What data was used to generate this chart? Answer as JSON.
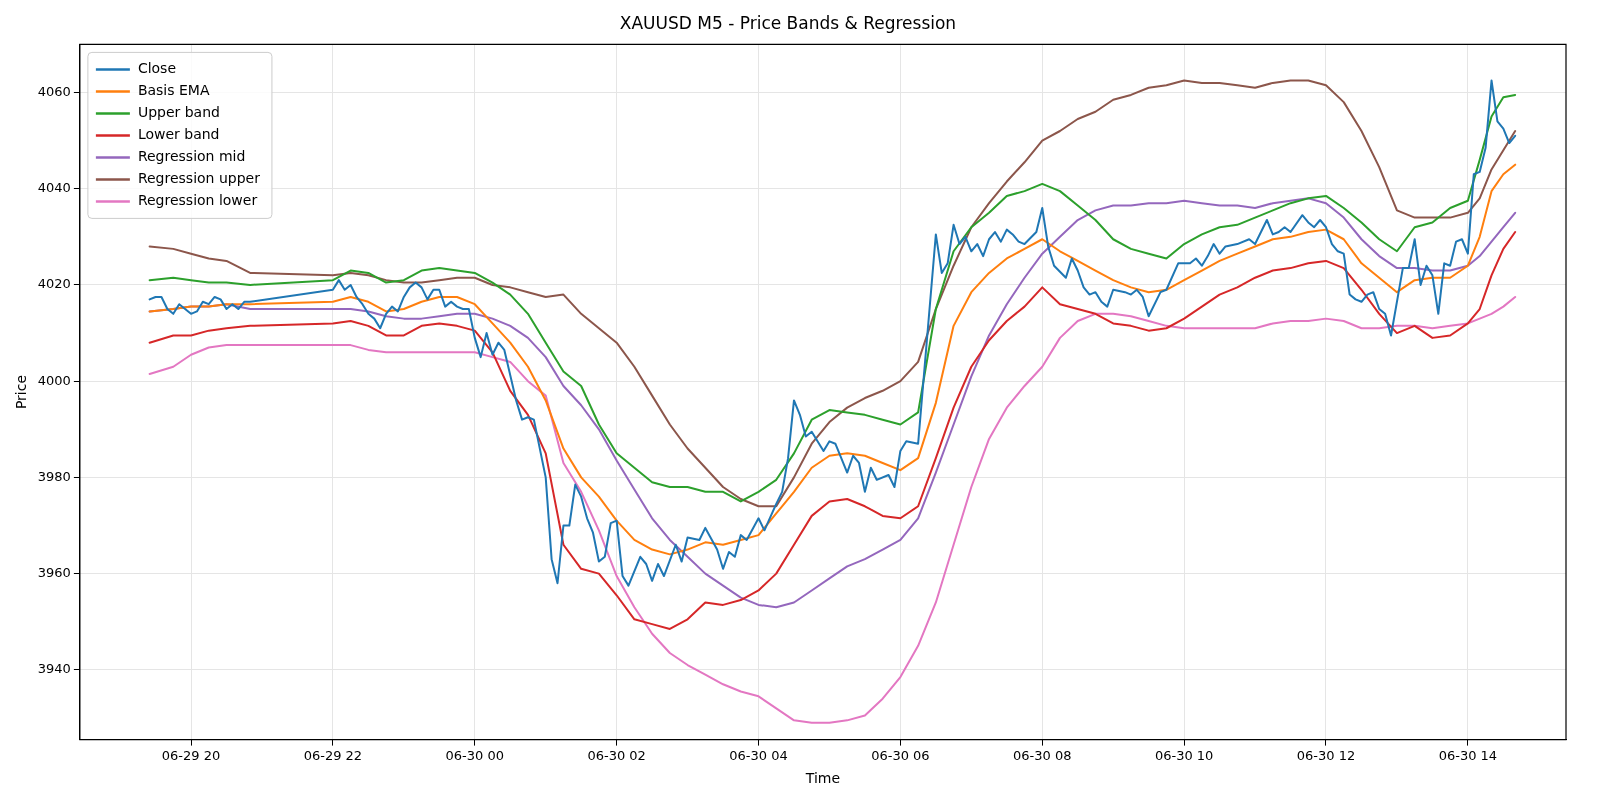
{
  "chart_data": {
    "type": "line",
    "title": "XAUUSD M5 - Price Bands & Regression",
    "xlabel": "Time",
    "ylabel": "Price",
    "x": [
      "--06-29T19:25",
      "--06-29T19:45",
      "--06-29T20:00",
      "--06-29T20:15",
      "--06-29T20:30",
      "--06-29T20:50",
      "--06-29T22:00",
      "--06-29T22:15",
      "--06-29T22:30",
      "--06-29T22:45",
      "--06-29T23:00",
      "--06-29T23:15",
      "--06-29T23:30",
      "--06-29T23:45",
      "--06-30T00:00",
      "--06-30T00:15",
      "--06-30T00:30",
      "--06-30T00:45",
      "--06-30T01:00",
      "--06-30T01:15",
      "--06-30T01:30",
      "--06-30T01:45",
      "--06-30T02:00",
      "--06-30T02:15",
      "--06-30T02:30",
      "--06-30T02:45",
      "--06-30T03:00",
      "--06-30T03:15",
      "--06-30T03:30",
      "--06-30T03:45",
      "--06-30T04:00",
      "--06-30T04:15",
      "--06-30T04:30",
      "--06-30T04:45",
      "--06-30T05:00",
      "--06-30T05:15",
      "--06-30T05:30",
      "--06-30T05:45",
      "--06-30T06:00",
      "--06-30T06:15",
      "--06-30T06:30",
      "--06-30T06:45",
      "--06-30T07:00",
      "--06-30T07:15",
      "--06-30T07:30",
      "--06-30T07:45",
      "--06-30T08:00",
      "--06-30T08:15",
      "--06-30T08:30",
      "--06-30T08:45",
      "--06-30T09:00",
      "--06-30T09:15",
      "--06-30T09:30",
      "--06-30T09:45",
      "--06-30T10:00",
      "--06-30T10:15",
      "--06-30T10:30",
      "--06-30T10:45",
      "--06-30T11:00",
      "--06-30T11:15",
      "--06-30T11:30",
      "--06-30T11:45",
      "--06-30T12:00",
      "--06-30T12:15",
      "--06-30T12:30",
      "--06-30T12:45",
      "--06-30T13:00",
      "--06-30T13:15",
      "--06-30T13:30",
      "--06-30T13:45",
      "--06-30T14:00",
      "--06-30T14:10",
      "--06-30T14:20",
      "--06-30T14:30",
      "--06-30T14:40"
    ],
    "series": [
      {
        "name": "Close",
        "color": "#1f77b4",
        "x": [
          "--06-29T19:25",
          "--06-29T19:30",
          "--06-29T19:35",
          "--06-29T19:40",
          "--06-29T19:45",
          "--06-29T19:50",
          "--06-29T19:55",
          "--06-29T20:00",
          "--06-29T20:05",
          "--06-29T20:10",
          "--06-29T20:15",
          "--06-29T20:20",
          "--06-29T20:25",
          "--06-29T20:30",
          "--06-29T20:35",
          "--06-29T20:40",
          "--06-29T20:45",
          "--06-29T20:50",
          "--06-29T22:00",
          "--06-29T22:05",
          "--06-29T22:10",
          "--06-29T22:15",
          "--06-29T22:20",
          "--06-29T22:25",
          "--06-29T22:30",
          "--06-29T22:35",
          "--06-29T22:40",
          "--06-29T22:45",
          "--06-29T22:50",
          "--06-29T22:55",
          "--06-29T23:00",
          "--06-29T23:05",
          "--06-29T23:10",
          "--06-29T23:15",
          "--06-29T23:20",
          "--06-29T23:25",
          "--06-29T23:30",
          "--06-29T23:35",
          "--06-29T23:40",
          "--06-29T23:45",
          "--06-29T23:50",
          "--06-29T23:55",
          "--06-30T00:00",
          "--06-30T00:05",
          "--06-30T00:10",
          "--06-30T00:15",
          "--06-30T00:20",
          "--06-30T00:25",
          "--06-30T00:35",
          "--06-30T00:40",
          "--06-30T00:45",
          "--06-30T00:50",
          "--06-30T01:00",
          "--06-30T01:05",
          "--06-30T01:10",
          "--06-30T01:15",
          "--06-30T01:20",
          "--06-30T01:25",
          "--06-30T01:30",
          "--06-30T01:35",
          "--06-30T01:40",
          "--06-30T01:45",
          "--06-30T01:50",
          "--06-30T01:55",
          "--06-30T02:00",
          "--06-30T02:05",
          "--06-30T02:10",
          "--06-30T02:20",
          "--06-30T02:25",
          "--06-30T02:30",
          "--06-30T02:35",
          "--06-30T02:40",
          "--06-30T02:50",
          "--06-30T02:55",
          "--06-30T03:00",
          "--06-30T03:10",
          "--06-30T03:15",
          "--06-30T03:25",
          "--06-30T03:30",
          "--06-30T03:35",
          "--06-30T03:40",
          "--06-30T03:45",
          "--06-30T03:50",
          "--06-30T04:00",
          "--06-30T04:05",
          "--06-30T04:15",
          "--06-30T04:20",
          "--06-30T04:25",
          "--06-30T04:30",
          "--06-30T04:35",
          "--06-30T04:40",
          "--06-30T04:45",
          "--06-30T04:55",
          "--06-30T05:00",
          "--06-30T05:05",
          "--06-30T05:15",
          "--06-30T05:20",
          "--06-30T05:25",
          "--06-30T05:30",
          "--06-30T05:35",
          "--06-30T05:40",
          "--06-30T05:50",
          "--06-30T05:55",
          "--06-30T06:00",
          "--06-30T06:05",
          "--06-30T06:15",
          "--06-30T06:30",
          "--06-30T06:35",
          "--06-30T06:40",
          "--06-30T06:45",
          "--06-30T06:50",
          "--06-30T06:55",
          "--06-30T07:00",
          "--06-30T07:05",
          "--06-30T07:10",
          "--06-30T07:15",
          "--06-30T07:20",
          "--06-30T07:25",
          "--06-30T07:30",
          "--06-30T07:35",
          "--06-30T07:40",
          "--06-30T07:45",
          "--06-30T07:55",
          "--06-30T08:00",
          "--06-30T08:05",
          "--06-30T08:10",
          "--06-30T08:20",
          "--06-30T08:25",
          "--06-30T08:30",
          "--06-30T08:35",
          "--06-30T08:40",
          "--06-30T08:45",
          "--06-30T08:50",
          "--06-30T08:55",
          "--06-30T09:00",
          "--06-30T09:10",
          "--06-30T09:15",
          "--06-30T09:20",
          "--06-30T09:25",
          "--06-30T09:30",
          "--06-30T09:40",
          "--06-30T09:45",
          "--06-30T09:55",
          "--06-30T10:00",
          "--06-30T10:05",
          "--06-30T10:10",
          "--06-30T10:15",
          "--06-30T10:20",
          "--06-30T10:25",
          "--06-30T10:30",
          "--06-30T10:35",
          "--06-30T10:45",
          "--06-30T10:55",
          "--06-30T11:00",
          "--06-30T11:10",
          "--06-30T11:15",
          "--06-30T11:20",
          "--06-30T11:25",
          "--06-30T11:30",
          "--06-30T11:40",
          "--06-30T11:45",
          "--06-30T11:50",
          "--06-30T11:55",
          "--06-30T12:00",
          "--06-30T12:05",
          "--06-30T12:10",
          "--06-30T12:15",
          "--06-30T12:20",
          "--06-30T12:25",
          "--06-30T12:30",
          "--06-30T12:35",
          "--06-30T12:40",
          "--06-30T12:45",
          "--06-30T12:50",
          "--06-30T12:55",
          "--06-30T13:05",
          "--06-30T13:10",
          "--06-30T13:15",
          "--06-30T13:20",
          "--06-30T13:25",
          "--06-30T13:30",
          "--06-30T13:35",
          "--06-30T13:40",
          "--06-30T13:45",
          "--06-30T13:50",
          "--06-30T13:55",
          "--06-30T14:00",
          "--06-30T14:05",
          "--06-30T14:10",
          "--06-30T14:15",
          "--06-30T14:20",
          "--06-30T14:25",
          "--06-30T14:30",
          "--06-30T14:35",
          "--06-30T14:40"
        ],
        "values": [
          4017,
          4017.5,
          4017.5,
          4015,
          4014,
          4016,
          4015,
          4014,
          4014.5,
          4016.5,
          4016,
          4017.5,
          4017,
          4015,
          4016,
          4015,
          4016.5,
          4016.5,
          4019,
          4021,
          4019,
          4020,
          4017.5,
          4016,
          4014,
          4013,
          4011,
          4014,
          4015.5,
          4014.5,
          4017.5,
          4019.5,
          4020.5,
          4019.5,
          4017,
          4019,
          4019,
          4015.5,
          4016.5,
          4015.5,
          4015,
          4015,
          4009,
          4005,
          4010,
          4005.5,
          4008,
          4006.5,
          3996,
          3992,
          3992.5,
          3992,
          3980,
          3963,
          3958,
          3970,
          3970,
          3978.5,
          3976,
          3971.5,
          3968.5,
          3962.5,
          3963.5,
          3970.5,
          3971,
          3959.5,
          3957.5,
          3963.5,
          3962,
          3958.5,
          3962,
          3959.5,
          3966,
          3962.5,
          3967.5,
          3967,
          3969.5,
          3965,
          3961,
          3964.5,
          3963.5,
          3968,
          3967,
          3971.5,
          3969,
          3974.5,
          3977,
          3984,
          3996,
          3993,
          3988.5,
          3989.5,
          3985.5,
          3987.5,
          3987,
          3981,
          3984.5,
          3983,
          3977,
          3982,
          3979.5,
          3980.5,
          3978,
          3985.5,
          3987.5,
          3987,
          4030.5,
          4022.5,
          4024.5,
          4032.5,
          4028.5,
          4030,
          4027,
          4028.5,
          4026,
          4029.5,
          4031,
          4029,
          4031.5,
          4030.5,
          4029,
          4028.5,
          4031,
          4036,
          4028,
          4024,
          4021.5,
          4025.5,
          4023,
          4019.5,
          4018,
          4018.5,
          4016.5,
          4015.5,
          4019,
          4018.5,
          4018,
          4019,
          4017.5,
          4013.5,
          4018.5,
          4019,
          4024.5,
          4024.5,
          4024.5,
          4025.5,
          4024,
          4026,
          4028.5,
          4026.5,
          4028,
          4028.5,
          4029.5,
          4028.5,
          4033.5,
          4030.5,
          4031,
          4032,
          4031,
          4034.5,
          4033,
          4032,
          4033.5,
          4032,
          4028.5,
          4027,
          4026.5,
          4018,
          4017,
          4016.5,
          4018,
          4018.5,
          4015,
          4014,
          4009.5,
          4023.5,
          4023.5,
          4029.5,
          4020,
          4024,
          4022,
          4014,
          4024.5,
          4024,
          4029,
          4029.5,
          4026.5,
          4043,
          4043.5,
          4048.5,
          4062.5,
          4054,
          4052.5,
          4049.5,
          4051
        ]
      },
      {
        "name": "Basis EMA",
        "color": "#ff7f0e",
        "values": [
          4014.5,
          4015,
          4015.5,
          4015.5,
          4016,
          4016,
          4016.5,
          4017.5,
          4016.5,
          4014.5,
          4015,
          4016.5,
          4017.5,
          4017.5,
          4016,
          4012,
          4008,
          4003,
          3996,
          3986,
          3980,
          3976,
          3971,
          3967,
          3965,
          3964,
          3965,
          3966.5,
          3966,
          3967,
          3968,
          3972.5,
          3977,
          3982,
          3984.5,
          3985,
          3984.5,
          3983,
          3981.5,
          3984,
          3995.5,
          4011.5,
          4018.5,
          4022.5,
          4025.5,
          4027.5,
          4029.5,
          4027,
          4025,
          4023,
          4021,
          4019.5,
          4018.5,
          4019,
          4021,
          4023,
          4025,
          4026.5,
          4028,
          4029.5,
          4030,
          4031,
          4031.5,
          4029.5,
          4024.5,
          4021.5,
          4018.5,
          4021,
          4021.5,
          4021.5,
          4024,
          4030,
          4039.5,
          4043,
          4045
        ]
      },
      {
        "name": "Upper band",
        "color": "#2ca02c",
        "values": [
          4021,
          4021.5,
          4021,
          4020.5,
          4020.5,
          4020,
          4021,
          4023,
          4022.5,
          4020.5,
          4021,
          4023,
          4023.5,
          4023,
          4022.5,
          4020.5,
          4018,
          4014,
          4008,
          4002,
          3999,
          3991,
          3985,
          3982,
          3979,
          3978,
          3978,
          3977,
          3977,
          3975,
          3977,
          3979.5,
          3985,
          3992,
          3994,
          3993.5,
          3993,
          3992,
          3991,
          3993.5,
          4015,
          4027,
          4032,
          4035,
          4038.5,
          4039.5,
          4041,
          4039.5,
          4036.5,
          4033.5,
          4029.5,
          4027.5,
          4026.5,
          4025.5,
          4028.5,
          4030.5,
          4032,
          4032.5,
          4034,
          4035.5,
          4037,
          4038,
          4038.5,
          4036,
          4033,
          4029.5,
          4027,
          4032,
          4033,
          4036,
          4037.5,
          4046,
          4055,
          4059,
          4059.5
        ]
      },
      {
        "name": "Lower band",
        "color": "#d62728",
        "values": [
          4008,
          4009.5,
          4009.5,
          4010.5,
          4011,
          4011.5,
          4012,
          4012.5,
          4011.5,
          4009.5,
          4009.5,
          4011.5,
          4012,
          4011.5,
          4010.5,
          4006,
          3998,
          3993,
          3985,
          3966,
          3961,
          3960,
          3955.5,
          3950.5,
          3949.5,
          3948.5,
          3950.5,
          3954,
          3953.5,
          3954.5,
          3956.5,
          3960,
          3966,
          3972,
          3975,
          3975.5,
          3974,
          3972,
          3971.5,
          3974,
          3984,
          3994.5,
          4003,
          4008.5,
          4012.5,
          4015.5,
          4019.5,
          4016,
          4015,
          4014,
          4012,
          4011.5,
          4010.5,
          4011,
          4013,
          4015.5,
          4018,
          4019.5,
          4021.5,
          4023,
          4023.5,
          4024.5,
          4025,
          4023.5,
          4019,
          4014,
          4010,
          4011.5,
          4009,
          4009.5,
          4012,
          4015,
          4022,
          4027.5,
          4031
        ]
      },
      {
        "name": "Regression mid",
        "color": "#9467bd",
        "values": [
          4014.5,
          4015,
          4015.5,
          4015.5,
          4016,
          4015,
          4015,
          4015,
          4014.5,
          4013.5,
          4013,
          4013,
          4013.5,
          4014,
          4014,
          4013,
          4011.5,
          4009,
          4005,
          3999,
          3995,
          3990,
          3983.5,
          3977.5,
          3971.5,
          3967,
          3963.5,
          3960,
          3957.5,
          3955,
          3953.5,
          3953,
          3954,
          3956.5,
          3959,
          3961.5,
          3963,
          3965,
          3967,
          3971.5,
          3981,
          3991,
          4001,
          4009.5,
          4016,
          4021.5,
          4026.5,
          4030,
          4033.5,
          4035.5,
          4036.5,
          4036.5,
          4037,
          4037,
          4037.5,
          4037,
          4036.5,
          4036.5,
          4036,
          4037,
          4037.5,
          4038,
          4037,
          4034,
          4029.5,
          4026,
          4023.5,
          4023.5,
          4023,
          4023,
          4024,
          4026,
          4029,
          4032,
          4035
        ]
      },
      {
        "name": "Regression upper",
        "color": "#8c564b",
        "values": [
          4028,
          4027.5,
          4026.5,
          4025.5,
          4025,
          4022.5,
          4022,
          4022.5,
          4022,
          4021,
          4020.5,
          4020.5,
          4021,
          4021.5,
          4021.5,
          4020,
          4019.5,
          4018.5,
          4017.5,
          4018,
          4014,
          4011,
          4008,
          4003,
          3997,
          3991,
          3986,
          3982,
          3978,
          3975.5,
          3974,
          3974,
          3980,
          3987,
          3991.5,
          3994.5,
          3996.5,
          3998,
          4000,
          4004,
          4015,
          4024,
          4032,
          4037,
          4041.5,
          4045.5,
          4050,
          4052,
          4054.5,
          4056,
          4058.5,
          4059.5,
          4061,
          4061.5,
          4062.5,
          4062,
          4062,
          4061.5,
          4061,
          4062,
          4062.5,
          4062.5,
          4061.5,
          4058,
          4052,
          4044.5,
          4035.5,
          4034,
          4034,
          4034,
          4035,
          4038,
          4044,
          4048,
          4052
        ]
      },
      {
        "name": "Regression lower",
        "color": "#e377c2",
        "values": [
          4001.5,
          4003,
          4005.5,
          4007,
          4007.5,
          4007.5,
          4007.5,
          4007.5,
          4006.5,
          4006,
          4006,
          4006,
          4006,
          4006,
          4006,
          4005,
          4004,
          4000,
          3997,
          3983,
          3977,
          3969,
          3959.5,
          3953,
          3947.5,
          3943.5,
          3941,
          3939,
          3937,
          3935.5,
          3934.5,
          3932,
          3929.5,
          3929,
          3929,
          3929.5,
          3930.5,
          3934,
          3938.5,
          3945,
          3954,
          3966,
          3978,
          3988,
          3994.5,
          3999,
          4003,
          4009,
          4012.5,
          4014,
          4014,
          4013.5,
          4012.5,
          4011.5,
          4011,
          4011,
          4011,
          4011,
          4011,
          4012,
          4012.5,
          4012.5,
          4013,
          4012.5,
          4011,
          4011,
          4011.5,
          4011.5,
          4011,
          4011.5,
          4012,
          4013,
          4014,
          4015.5,
          4017.5
        ]
      }
    ],
    "xlim": [
      "--06-29T18:26",
      "--06-30T15:23"
    ],
    "ylim": [
      3925.5,
      4070
    ],
    "xticks": [
      {
        "value": "--06-29T20:00",
        "label": "06-29 20"
      },
      {
        "value": "--06-29T22:00",
        "label": "06-29 22"
      },
      {
        "value": "--06-30T00:00",
        "label": "06-30 00"
      },
      {
        "value": "--06-30T02:00",
        "label": "06-30 02"
      },
      {
        "value": "--06-30T04:00",
        "label": "06-30 04"
      },
      {
        "value": "--06-30T06:00",
        "label": "06-30 06"
      },
      {
        "value": "--06-30T08:00",
        "label": "06-30 08"
      },
      {
        "value": "--06-30T10:00",
        "label": "06-30 10"
      },
      {
        "value": "--06-30T12:00",
        "label": "06-30 12"
      },
      {
        "value": "--06-30T14:00",
        "label": "06-30 14"
      }
    ],
    "yticks": [
      3940,
      3960,
      3980,
      4000,
      4020,
      4040,
      4060
    ],
    "grid": true,
    "legend": "top left",
    "marker": "none",
    "line_style": "solid"
  }
}
